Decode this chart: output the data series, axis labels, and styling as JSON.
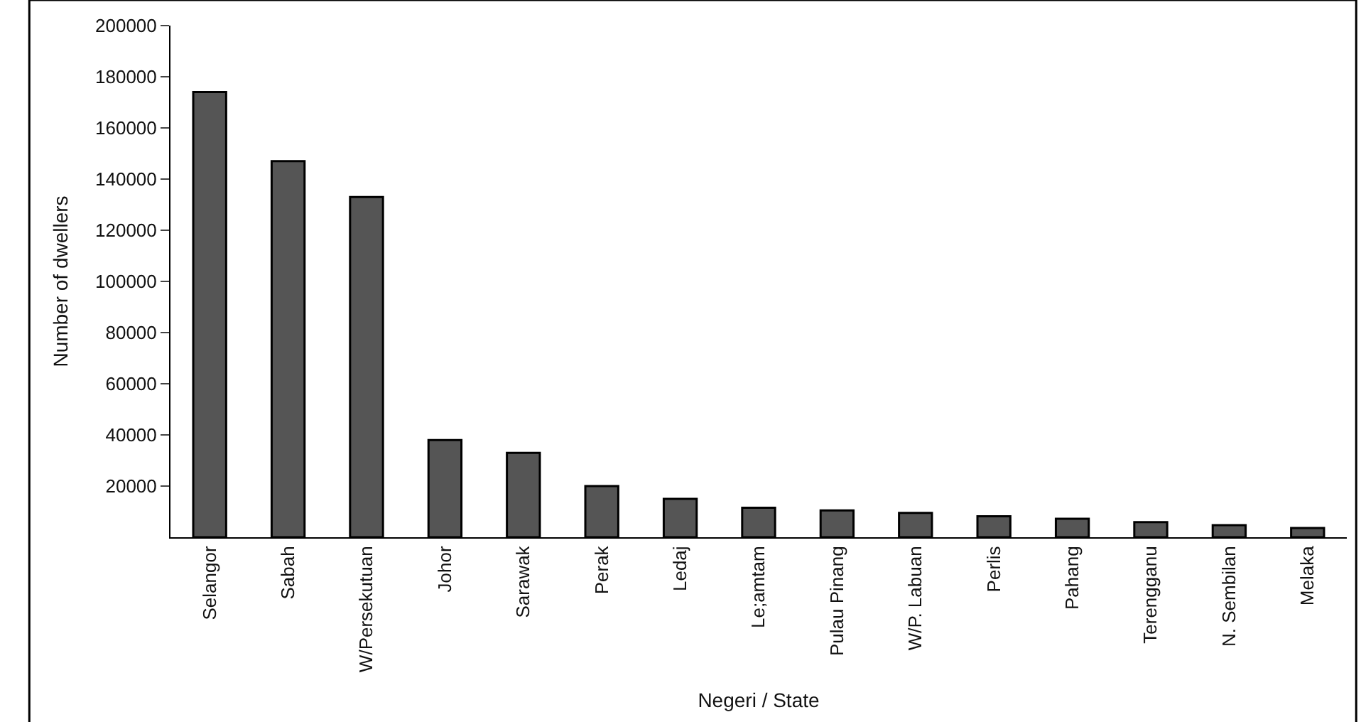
{
  "chart_data": {
    "type": "bar",
    "xlabel": "Negeri / State",
    "ylabel": "Number of dwellers",
    "categories": [
      "Selangor",
      "Sabah",
      "W/Persekutuan",
      "Johor",
      "Sarawak",
      "Perak",
      "Ledaj",
      "Le;amtam",
      "Pulau Pinang",
      "W/P. Labuan",
      "Perlis",
      "Pahang",
      "Terengganu",
      "N. Sembilan",
      "Melaka"
    ],
    "values": [
      174000,
      147000,
      133000,
      38000,
      33000,
      20000,
      15000,
      11500,
      10500,
      9500,
      8200,
      7200,
      5900,
      4700,
      3600
    ],
    "color": "#555555",
    "ylim": [
      0,
      200000
    ],
    "yticks": [
      20000,
      40000,
      60000,
      80000,
      100000,
      120000,
      140000,
      160000,
      180000,
      200000
    ]
  }
}
